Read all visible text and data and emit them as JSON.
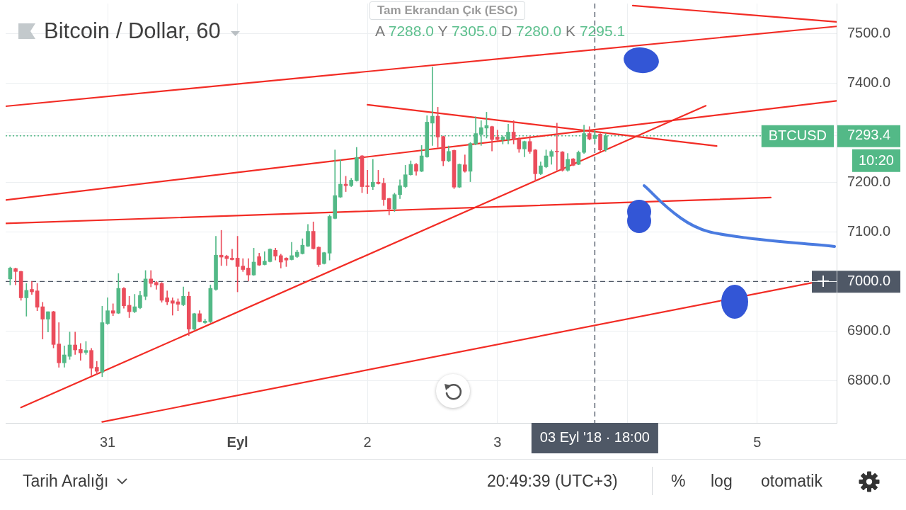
{
  "chart_data": {
    "type": "candlestick",
    "title": "Bitcoin / Dollar, 60",
    "subtitle": "A 7288.0 Y 7305.0 D 7280.0 K 7295.1",
    "x": [
      "2018-08-30T06:00",
      "2018-08-30T07:00",
      "2018-08-30T08:00",
      "2018-08-30T09:00",
      "2018-08-30T10:00",
      "2018-08-30T11:00",
      "2018-08-30T12:00",
      "2018-08-30T13:00",
      "2018-08-30T14:00",
      "2018-08-30T15:00",
      "2018-08-30T16:00",
      "2018-08-30T17:00",
      "2018-08-30T18:00",
      "2018-08-30T19:00",
      "2018-08-30T20:00",
      "2018-08-30T21:00",
      "2018-08-30T22:00",
      "2018-08-30T23:00",
      "2018-08-31T00:00",
      "2018-08-31T01:00",
      "2018-08-31T02:00",
      "2018-08-31T03:00",
      "2018-08-31T04:00",
      "2018-08-31T05:00",
      "2018-08-31T06:00",
      "2018-08-31T07:00",
      "2018-08-31T08:00",
      "2018-08-31T09:00",
      "2018-08-31T10:00",
      "2018-08-31T11:00",
      "2018-08-31T12:00",
      "2018-08-31T13:00",
      "2018-08-31T14:00",
      "2018-08-31T15:00",
      "2018-08-31T16:00",
      "2018-08-31T17:00",
      "2018-08-31T18:00",
      "2018-08-31T19:00",
      "2018-08-31T20:00",
      "2018-08-31T21:00",
      "2018-08-31T22:00",
      "2018-08-31T23:00",
      "2018-09-01T00:00",
      "2018-09-01T01:00",
      "2018-09-01T02:00",
      "2018-09-01T03:00",
      "2018-09-01T04:00",
      "2018-09-01T05:00",
      "2018-09-01T06:00",
      "2018-09-01T07:00",
      "2018-09-01T08:00",
      "2018-09-01T09:00",
      "2018-09-01T10:00",
      "2018-09-01T11:00",
      "2018-09-01T12:00",
      "2018-09-01T13:00",
      "2018-09-01T14:00",
      "2018-09-01T15:00",
      "2018-09-01T16:00",
      "2018-09-01T17:00",
      "2018-09-01T18:00",
      "2018-09-01T19:00",
      "2018-09-01T20:00",
      "2018-09-01T21:00",
      "2018-09-01T22:00",
      "2018-09-01T23:00",
      "2018-09-02T00:00",
      "2018-09-02T01:00",
      "2018-09-02T02:00",
      "2018-09-02T03:00",
      "2018-09-02T04:00",
      "2018-09-02T05:00",
      "2018-09-02T06:00",
      "2018-09-02T07:00",
      "2018-09-02T08:00",
      "2018-09-02T09:00",
      "2018-09-02T10:00",
      "2018-09-02T11:00",
      "2018-09-02T12:00",
      "2018-09-02T13:00",
      "2018-09-02T14:00",
      "2018-09-02T15:00",
      "2018-09-02T16:00",
      "2018-09-02T17:00",
      "2018-09-02T18:00",
      "2018-09-02T19:00",
      "2018-09-02T20:00",
      "2018-09-02T21:00",
      "2018-09-02T22:00",
      "2018-09-02T23:00",
      "2018-09-03T00:00",
      "2018-09-03T01:00",
      "2018-09-03T02:00",
      "2018-09-03T03:00",
      "2018-09-03T04:00",
      "2018-09-03T05:00",
      "2018-09-03T06:00",
      "2018-09-03T07:00",
      "2018-09-03T08:00",
      "2018-09-03T09:00",
      "2018-09-03T10:00",
      "2018-09-03T11:00",
      "2018-09-03T12:00",
      "2018-09-03T13:00",
      "2018-09-03T14:00",
      "2018-09-03T15:00",
      "2018-09-03T16:00",
      "2018-09-03T17:00",
      "2018-09-03T18:00",
      "2018-09-03T19:00",
      "2018-09-03T20:00"
    ],
    "ohlc": [
      [
        7005,
        7029,
        6993,
        7027
      ],
      [
        7026,
        7027,
        6993,
        7020
      ],
      [
        7020,
        7021,
        6962,
        6967
      ],
      [
        6967,
        6996,
        6930,
        6982
      ],
      [
        6984,
        7000,
        6974,
        6979
      ],
      [
        6981,
        6996,
        6941,
        6948
      ],
      [
        6949,
        6958,
        6884,
        6924
      ],
      [
        6924,
        6939,
        6898,
        6939
      ],
      [
        6939,
        6940,
        6866,
        6873
      ],
      [
        6874,
        6917,
        6827,
        6836
      ],
      [
        6836,
        6870,
        6827,
        6852
      ],
      [
        6849,
        6898,
        6843,
        6872
      ],
      [
        6872,
        6898,
        6853,
        6862
      ],
      [
        6863,
        6875,
        6841,
        6856
      ],
      [
        6857,
        6879,
        6853,
        6861
      ],
      [
        6861,
        6865,
        6810,
        6825
      ],
      [
        6827,
        6839,
        6813,
        6819
      ],
      [
        6817,
        6950,
        6808,
        6917
      ],
      [
        6915,
        6967,
        6913,
        6941
      ],
      [
        6941,
        6955,
        6931,
        6936
      ],
      [
        6936,
        7016,
        6935,
        6986
      ],
      [
        6986,
        6988,
        6946,
        6951
      ],
      [
        6952,
        6970,
        6927,
        6939
      ],
      [
        6939,
        6974,
        6937,
        6949
      ],
      [
        6947,
        6980,
        6945,
        6972
      ],
      [
        6970,
        7022,
        6963,
        7005
      ],
      [
        7005,
        7022,
        6989,
        6996
      ],
      [
        6998,
        7000,
        6984,
        6993
      ],
      [
        6996,
        6998,
        6958,
        6962
      ],
      [
        6967,
        6981,
        6953,
        6959
      ],
      [
        6961,
        6967,
        6932,
        6956
      ],
      [
        6959,
        6965,
        6941,
        6954
      ],
      [
        6953,
        6989,
        6951,
        6970
      ],
      [
        6970,
        6979,
        6891,
        6904
      ],
      [
        6904,
        6936,
        6902,
        6935
      ],
      [
        6935,
        6941,
        6918,
        6919
      ],
      [
        6917,
        6924,
        6915,
        6920
      ],
      [
        6919,
        6993,
        6917,
        6986
      ],
      [
        6984,
        7091,
        6982,
        7053
      ],
      [
        7053,
        7103,
        7032,
        7049
      ],
      [
        7051,
        7053,
        7032,
        7046
      ],
      [
        7047,
        7065,
        7043,
        7044
      ],
      [
        7047,
        7091,
        6979,
        7030
      ],
      [
        7031,
        7046,
        7020,
        7024
      ],
      [
        7027,
        7046,
        7001,
        7013
      ],
      [
        7013,
        7067,
        7012,
        7039
      ],
      [
        7050,
        7057,
        7032,
        7033
      ],
      [
        7034,
        7060,
        7033,
        7041
      ],
      [
        7040,
        7066,
        7039,
        7065
      ],
      [
        7063,
        7067,
        7043,
        7051
      ],
      [
        7052,
        7055,
        7027,
        7039
      ],
      [
        7047,
        7048,
        7030,
        7043
      ],
      [
        7044,
        7079,
        7043,
        7052
      ],
      [
        7050,
        7063,
        7048,
        7059
      ],
      [
        7056,
        7086,
        7055,
        7073
      ],
      [
        7071,
        7115,
        7070,
        7101
      ],
      [
        7101,
        7120,
        7065,
        7066
      ],
      [
        7069,
        7070,
        7030,
        7034
      ],
      [
        7036,
        7059,
        7035,
        7058
      ],
      [
        7057,
        7134,
        7043,
        7131
      ],
      [
        7127,
        7265,
        7126,
        7173
      ],
      [
        7170,
        7246,
        7169,
        7196
      ],
      [
        7196,
        7212,
        7181,
        7193
      ],
      [
        7193,
        7208,
        7191,
        7204
      ],
      [
        7203,
        7270,
        7202,
        7250
      ],
      [
        7253,
        7254,
        7179,
        7191
      ],
      [
        7193,
        7224,
        7177,
        7191
      ],
      [
        7191,
        7246,
        7185,
        7200
      ],
      [
        7200,
        7224,
        7196,
        7197
      ],
      [
        7198,
        7208,
        7153,
        7165
      ],
      [
        7167,
        7168,
        7134,
        7146
      ],
      [
        7146,
        7178,
        7141,
        7175
      ],
      [
        7175,
        7205,
        7167,
        7193
      ],
      [
        7191,
        7234,
        7189,
        7215
      ],
      [
        7215,
        7243,
        7214,
        7236
      ],
      [
        7236,
        7238,
        7214,
        7222
      ],
      [
        7222,
        7274,
        7221,
        7253
      ],
      [
        7251,
        7334,
        7250,
        7321
      ],
      [
        7319,
        7432,
        7274,
        7333
      ],
      [
        7333,
        7351,
        7270,
        7291
      ],
      [
        7292,
        7293,
        7233,
        7243
      ],
      [
        7243,
        7273,
        7241,
        7262
      ],
      [
        7264,
        7265,
        7187,
        7190
      ],
      [
        7190,
        7237,
        7189,
        7236
      ],
      [
        7235,
        7255,
        7220,
        7222
      ],
      [
        7222,
        7280,
        7201,
        7278
      ],
      [
        7277,
        7332,
        7275,
        7298
      ],
      [
        7296,
        7324,
        7274,
        7310
      ],
      [
        7309,
        7341,
        7289,
        7314
      ],
      [
        7312,
        7313,
        7263,
        7286
      ],
      [
        7291,
        7305,
        7284,
        7286
      ],
      [
        7285,
        7293,
        7277,
        7291
      ],
      [
        7286,
        7317,
        7277,
        7301
      ],
      [
        7301,
        7324,
        7277,
        7286
      ],
      [
        7286,
        7290,
        7260,
        7267
      ],
      [
        7267,
        7283,
        7251,
        7282
      ],
      [
        7282,
        7293,
        7258,
        7262
      ],
      [
        7265,
        7266,
        7203,
        7217
      ],
      [
        7217,
        7241,
        7215,
        7233
      ],
      [
        7231,
        7265,
        7229,
        7253
      ],
      [
        7252,
        7265,
        7236,
        7262
      ],
      [
        7262,
        7319,
        7224,
        7261
      ],
      [
        7261,
        7262,
        7222,
        7224
      ],
      [
        7224,
        7258,
        7222,
        7246
      ],
      [
        7247,
        7248,
        7233,
        7234
      ],
      [
        7236,
        7263,
        7235,
        7260
      ],
      [
        7260,
        7315,
        7258,
        7298
      ],
      [
        7298,
        7312,
        7285,
        7287
      ],
      [
        7288,
        7305,
        7280,
        7295.1
      ],
      [
        7297,
        7298,
        7262,
        7265
      ],
      [
        7265,
        7298,
        7262,
        7293.4
      ]
    ],
    "colors": [
      "#53b987",
      "#eb4d5c",
      "#eb4d5c",
      "#53b987",
      "#eb4d5c",
      "#eb4d5c",
      "#eb4d5c",
      "#53b987",
      "#eb4d5c",
      "#eb4d5c",
      "#53b987",
      "#53b987",
      "#eb4d5c",
      "#eb4d5c",
      "#53b987",
      "#eb4d5c",
      "#eb4d5c",
      "#53b987",
      "#53b987",
      "#eb4d5c",
      "#53b987",
      "#eb4d5c",
      "#eb4d5c",
      "#53b987",
      "#53b987",
      "#53b987",
      "#eb4d5c",
      "#eb4d5c",
      "#eb4d5c",
      "#eb4d5c",
      "#eb4d5c",
      "#eb4d5c",
      "#53b987",
      "#eb4d5c",
      "#53b987",
      "#eb4d5c",
      "#53b987",
      "#53b987",
      "#53b987",
      "#eb4d5c",
      "#eb4d5c",
      "#eb4d5c",
      "#eb4d5c",
      "#eb4d5c",
      "#eb4d5c",
      "#53b987",
      "#eb4d5c",
      "#53b987",
      "#53b987",
      "#eb4d5c",
      "#eb4d5c",
      "#eb4d5c",
      "#53b987",
      "#53b987",
      "#53b987",
      "#53b987",
      "#eb4d5c",
      "#eb4d5c",
      "#53b987",
      "#53b987",
      "#53b987",
      "#53b987",
      "#eb4d5c",
      "#53b987",
      "#53b987",
      "#eb4d5c",
      "#eb4d5c",
      "#53b987",
      "#eb4d5c",
      "#eb4d5c",
      "#eb4d5c",
      "#53b987",
      "#53b987",
      "#53b987",
      "#53b987",
      "#eb4d5c",
      "#53b987",
      "#53b987",
      "#53b987",
      "#eb4d5c",
      "#eb4d5c",
      "#53b987",
      "#eb4d5c",
      "#53b987",
      "#eb4d5c",
      "#53b987",
      "#53b987",
      "#53b987",
      "#53b987",
      "#eb4d5c",
      "#eb4d5c",
      "#53b987",
      "#53b987",
      "#eb4d5c",
      "#eb4d5c",
      "#53b987",
      "#eb4d5c",
      "#eb4d5c",
      "#53b987",
      "#53b987",
      "#53b987",
      "#eb4d5c",
      "#eb4d5c",
      "#53b987",
      "#eb4d5c",
      "#53b987",
      "#53b987",
      "#eb4d5c",
      "#53b987",
      "#eb4d5c",
      "#53b987"
    ],
    "series": [
      {
        "type": "line",
        "color": "#f22c25",
        "x": [
          "2018-09-04T01:00",
          "2018-09-05T14:40"
        ],
        "values": [
          7556,
          7523
        ]
      },
      {
        "type": "line",
        "color": "#f22c25",
        "x": [
          "2018-08-30T05:10",
          "2018-09-05T14:40"
        ],
        "values": [
          7353,
          7514
        ]
      },
      {
        "type": "line",
        "color": "#f22c25",
        "x": [
          "2018-09-02T00:00",
          "2018-09-04T16:30"
        ],
        "values": [
          7356,
          7273
        ]
      },
      {
        "type": "line",
        "color": "#f22c25",
        "x": [
          "2018-08-30T05:10",
          "2018-09-05T14:40"
        ],
        "values": [
          7164,
          7364
        ]
      },
      {
        "type": "line",
        "color": "#f22c25",
        "x": [
          "2018-08-30T08:00",
          "2018-09-04T14:30"
        ],
        "values": [
          6746,
          7354
        ]
      },
      {
        "type": "line",
        "color": "#f22c25",
        "x": [
          "2018-08-30T05:10",
          "2018-09-05T02:30"
        ],
        "values": [
          7117,
          7169
        ]
      },
      {
        "type": "line",
        "color": "#f22c25",
        "x": [
          "2018-08-30T23:00",
          "2018-09-05T10:00"
        ],
        "values": [
          6717,
          6997
        ]
      }
    ],
    "xlim": [
      "2018-08-30T05:10",
      "2018-09-05T14:40"
    ],
    "xticks": [
      {
        "value": "2018-08-31",
        "label": "31"
      },
      {
        "value": "2018-09-01",
        "label": "Eyl"
      },
      {
        "value": "2018-09-02",
        "label": "2"
      },
      {
        "value": "2018-09-03",
        "label": "3"
      },
      {
        "value": "2018-09-04",
        "label": null
      },
      {
        "value": "2018-09-05",
        "label": "5"
      }
    ],
    "ylim": [
      6715,
      7560
    ],
    "yticks": [
      {
        "value": 6800,
        "label": "6800.0"
      },
      {
        "value": 6900,
        "label": "6900.0"
      },
      {
        "value": 7000,
        "label": "7000.0"
      },
      {
        "value": 7100,
        "label": "7100.0"
      },
      {
        "value": 7200,
        "label": "7200.0"
      },
      {
        "value": 7293.4,
        "label": "7293.4"
      },
      {
        "value": 7300,
        "label": null
      },
      {
        "value": 7400,
        "label": "7400.0"
      },
      {
        "value": 7500,
        "label": "7500.0"
      }
    ],
    "grid": true,
    "ref_lines": [
      {
        "axis": "x",
        "value": "2018-09-03T18:00",
        "label": "03 Eyl '18 · 18:00",
        "color": "#4f5866",
        "line_style": "dashed"
      },
      {
        "axis": "y",
        "value": 7000,
        "label": null,
        "color": "#4f5866",
        "line_style": "dashed"
      },
      {
        "axis": "y",
        "value": 7293.4,
        "label": "BTCUSD",
        "color": "#53b987",
        "line_style": "dotted"
      }
    ],
    "annotations": [
      "Tam Ekrandan Çık (ESC)",
      "10:20",
      "Tarih Aralığı",
      "20:49:39 (UTC+3)",
      "%",
      "log",
      "otomatik"
    ]
  }
}
